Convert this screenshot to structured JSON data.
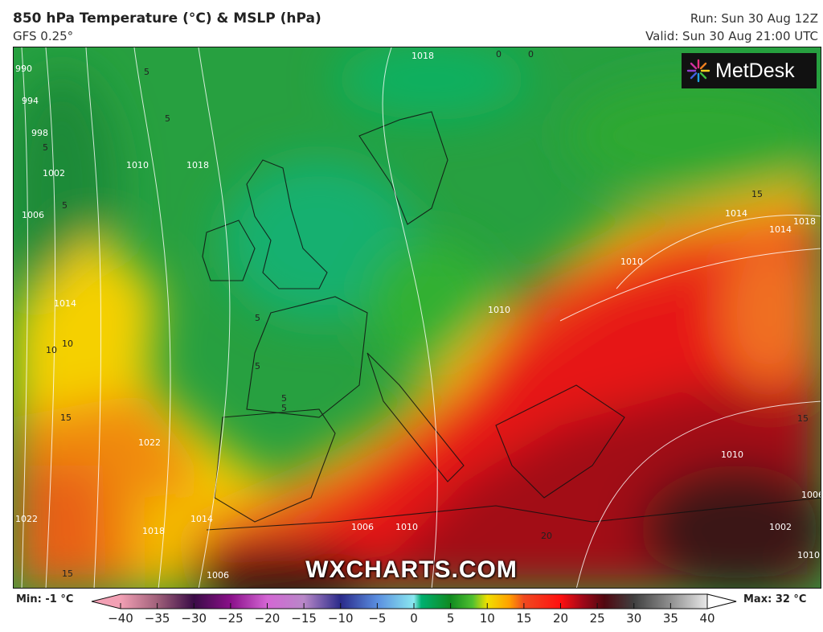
{
  "header": {
    "title": "850 hPa Temperature (°C) & MSLP (hPa)",
    "model": "GFS 0.25°",
    "run": "Run: Sun 30 Aug 12Z",
    "valid": "Valid: Sun 30 Aug 21:00 UTC"
  },
  "logo": {
    "text": "MetDesk",
    "icon": "metdesk-starburst-icon"
  },
  "watermark": "WXCHARTS.COM",
  "legend": {
    "min_label": "Min: -1 °C",
    "max_label": "Max: 32 °C",
    "ticks": [
      "−40",
      "−35",
      "−30",
      "−25",
      "−20",
      "−15",
      "−10",
      "−5",
      "0",
      "5",
      "10",
      "15",
      "20",
      "25",
      "30",
      "35",
      "40"
    ],
    "range": [
      -40,
      40
    ],
    "colors": {
      "-40": "#f2a0b4",
      "-35": "#a0607a",
      "-30": "#3a0c46",
      "-25": "#8a108a",
      "-20": "#d466d4",
      "-15": "#b888c8",
      "-10": "#2a2a8a",
      "-5": "#5a8ee0",
      "0": "#8ae8f0",
      "1": "#00b070",
      "5": "#108a20",
      "8": "#50c030",
      "10": "#f0e000",
      "13": "#ffa000",
      "15": "#f04a20",
      "20": "#ff1010",
      "23": "#a00818",
      "26": "#500810",
      "30": "#404040",
      "35": "#909090",
      "40": "#e8e8e8"
    }
  },
  "map": {
    "isobar_labels": [
      "990",
      "994",
      "998",
      "1002",
      "1006",
      "1010",
      "1014",
      "1018",
      "1022",
      "1018",
      "1014",
      "1010",
      "1006",
      "1006",
      "1010",
      "1014",
      "1018",
      "1022",
      "1010",
      "1014",
      "1018",
      "1010",
      "1006",
      "1002",
      "1010"
    ],
    "temperature_labels": [
      "5",
      "5",
      "5",
      "5",
      "5",
      "5",
      "10",
      "15",
      "15",
      "15",
      "20",
      "5",
      "5",
      "10",
      "15",
      "0",
      "0"
    ]
  }
}
